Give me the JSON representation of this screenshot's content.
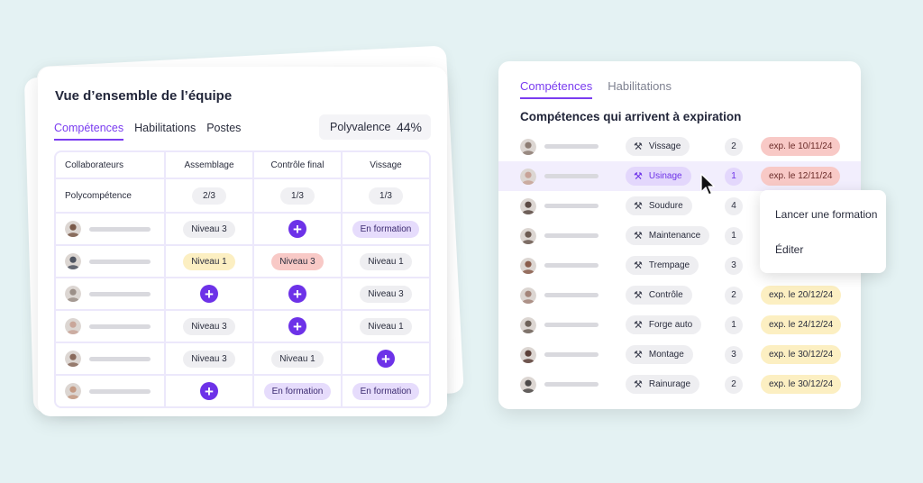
{
  "colors": {
    "background": "#e4f2f3",
    "accent": "#7a3cf0",
    "button": "#6d32e8"
  },
  "left": {
    "title": "Vue d’ensemble de l’équipe",
    "tabs": [
      "Compétences",
      "Habilitations",
      "Postes"
    ],
    "active_tab": "Compétences",
    "polyvalence": {
      "label": "Polyvalence",
      "value": "44%"
    },
    "columns": [
      "Collaborateurs",
      "Assemblage",
      "Contrôle final",
      "Vissage"
    ],
    "polycompetence": {
      "label": "Polycompétence",
      "values": [
        "2/3",
        "1/3",
        "1/3"
      ]
    },
    "rows": [
      {
        "avatar_color": "#7a5a4a",
        "cells": [
          {
            "text": "Niveau 3",
            "kind": "gray"
          },
          {
            "text": "",
            "kind": "add"
          },
          {
            "text": "En formation",
            "kind": "purple"
          }
        ]
      },
      {
        "avatar_color": "#4e5460",
        "cells": [
          {
            "text": "Niveau 1",
            "kind": "yellow"
          },
          {
            "text": "Niveau 3",
            "kind": "red"
          },
          {
            "text": "Niveau 1",
            "kind": "gray"
          }
        ]
      },
      {
        "avatar_color": "#9b8f88",
        "cells": [
          {
            "text": "",
            "kind": "add"
          },
          {
            "text": "",
            "kind": "add"
          },
          {
            "text": "Niveau 3",
            "kind": "gray"
          }
        ]
      },
      {
        "avatar_color": "#c9a69a",
        "cells": [
          {
            "text": "Niveau 3",
            "kind": "gray"
          },
          {
            "text": "",
            "kind": "add"
          },
          {
            "text": "Niveau 1",
            "kind": "gray"
          }
        ]
      },
      {
        "avatar_color": "#8a6b5d",
        "cells": [
          {
            "text": "Niveau 3",
            "kind": "gray"
          },
          {
            "text": "Niveau 1",
            "kind": "gray"
          },
          {
            "text": "",
            "kind": "add"
          }
        ]
      },
      {
        "avatar_color": "#c49a84",
        "cells": [
          {
            "text": "",
            "kind": "add"
          },
          {
            "text": "En formation",
            "kind": "purple"
          },
          {
            "text": "En formation",
            "kind": "purple"
          }
        ]
      }
    ]
  },
  "right": {
    "tabs": [
      "Compétences",
      "Habilitations"
    ],
    "active_tab": "Compétences",
    "title": "Compétences qui arrivent à expiration",
    "rows": [
      {
        "avatar_color": "#8d7d74",
        "skill": "Vissage",
        "count": "2",
        "expiry": "exp. le 10/11/24",
        "status": "red"
      },
      {
        "avatar_color": "#c8a398",
        "skill": "Usinage",
        "count": "1",
        "expiry": "exp. le 12/11/24",
        "status": "red",
        "highlighted": true
      },
      {
        "avatar_color": "#5b4a44",
        "skill": "Soudure",
        "count": "4",
        "expiry": "",
        "status": "none"
      },
      {
        "avatar_color": "#6c5b52",
        "skill": "Maintenance",
        "count": "1",
        "expiry": "",
        "status": "none"
      },
      {
        "avatar_color": "#8a5d4c",
        "skill": "Trempage",
        "count": "3",
        "expiry": "",
        "status": "none"
      },
      {
        "avatar_color": "#a4857a",
        "skill": "Contrôle",
        "count": "2",
        "expiry": "exp. le 20/12/24",
        "status": "yellow"
      },
      {
        "avatar_color": "#6e6259",
        "skill": "Forge auto",
        "count": "1",
        "expiry": "exp. le 24/12/24",
        "status": "yellow"
      },
      {
        "avatar_color": "#5c4038",
        "skill": "Montage",
        "count": "3",
        "expiry": "exp. le 30/12/24",
        "status": "yellow"
      },
      {
        "avatar_color": "#4d4a49",
        "skill": "Rainurage",
        "count": "2",
        "expiry": "exp. le 30/12/24",
        "status": "yellow"
      }
    ],
    "menu": [
      "Lancer une formation",
      "Éditer"
    ]
  },
  "icons": {
    "tool": "tools-icon",
    "add": "plus-icon",
    "cursor": "mouse-pointer-icon"
  }
}
